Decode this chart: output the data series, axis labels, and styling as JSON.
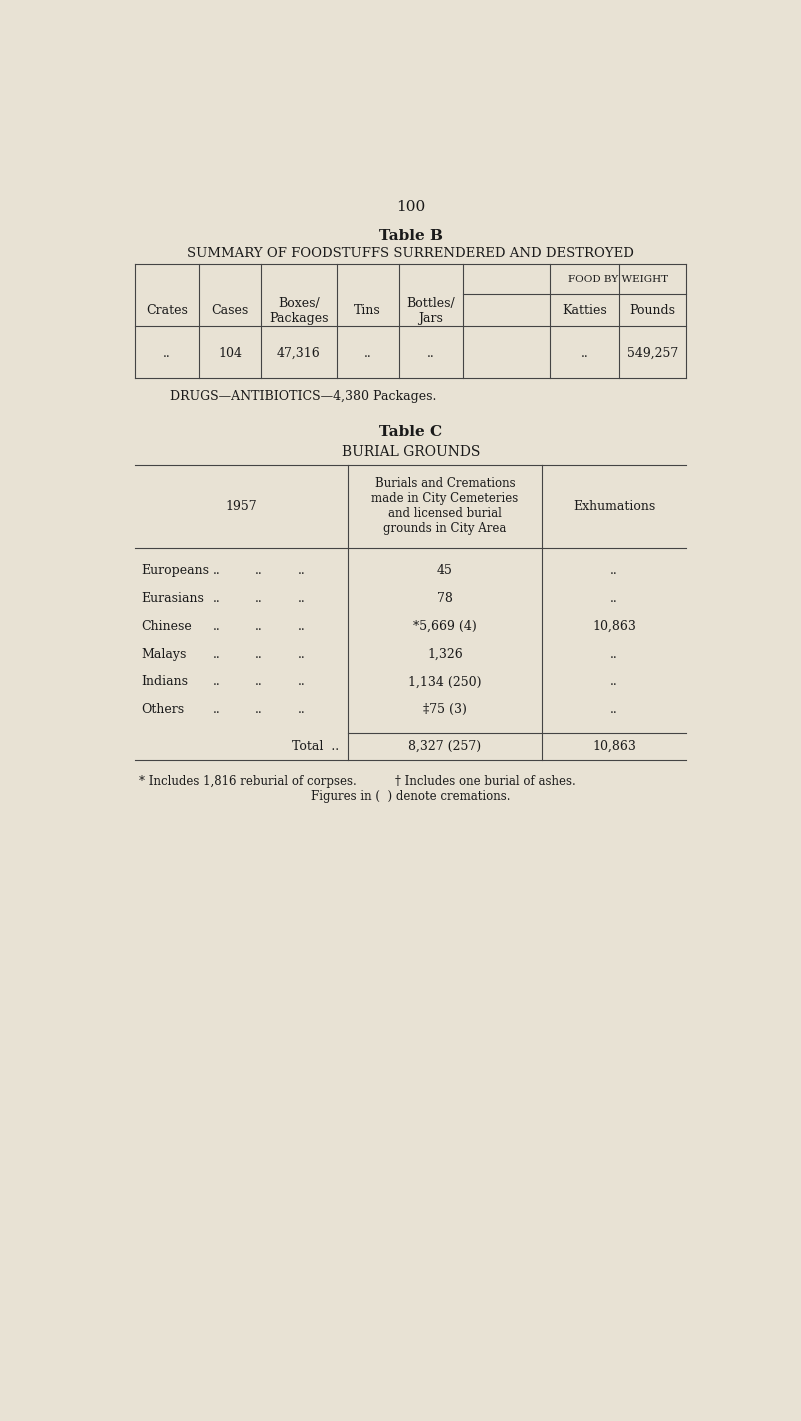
{
  "page_number": "100",
  "bg_color": "#e8e2d4",
  "text_color": "#1a1a1a",
  "table_b_title": "Table B",
  "table_b_subtitle": "SUMMARY OF FOODSTUFFS SURRENDERED AND DESTROYED",
  "table_b_food_weight_header": "FOOD BY WEIGHT",
  "table_b_col_headers": [
    "Crates",
    "Cases",
    "Boxes/\nPackages",
    "Tins",
    "Bottles/\nJars",
    "Katties",
    "Pounds"
  ],
  "table_b_data": [
    "..",
    "104",
    "47,316",
    "..",
    "..",
    "..",
    "549,257"
  ],
  "drugs_line": "DRUGS—ANTIBIOTICS—4,380 Packages.",
  "table_c_title": "Table C",
  "table_c_subtitle": "BURIAL GROUNDS",
  "table_c_col1_header": "1957",
  "table_c_col2_header": "Burials and Cremations\nmade in City Cemeteries\nand licensed burial\ngrounds in City Area",
  "table_c_col3_header": "Exhumations",
  "table_c_rows": [
    [
      "Europeans",
      "45",
      ".."
    ],
    [
      "Eurasians",
      "78",
      ".."
    ],
    [
      "Chinese",
      "*5,669 (4)",
      "10,863"
    ],
    [
      "Malays",
      "1,326",
      ".."
    ],
    [
      "Indians",
      "1,134 (250)",
      ".."
    ],
    [
      "Others",
      "‡75 (3)",
      ".."
    ]
  ],
  "table_c_total_label": "Total  ..",
  "table_c_total_burials": "8,327 (257)",
  "table_c_total_exhum": "10,863",
  "footnote1": "* Includes 1,816 reburial of corpses.",
  "footnote2": "† Includes one burial of ashes.",
  "footnote3": "Figures in (  ) denote cremations."
}
